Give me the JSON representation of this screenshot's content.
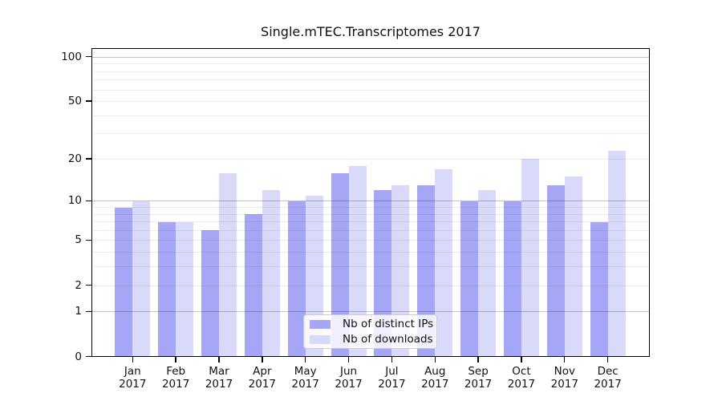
{
  "figure": {
    "background": "#ffffff"
  },
  "chart_data": {
    "type": "bar",
    "title": "Single.mTEC.Transcriptomes 2017",
    "categories": [
      "Jan 2017",
      "Feb 2017",
      "Mar 2017",
      "Apr 2017",
      "May 2017",
      "Jun 2017",
      "Jul 2017",
      "Aug 2017",
      "Sep 2017",
      "Oct 2017",
      "Nov 2017",
      "Dec 2017"
    ],
    "series": [
      {
        "name": "Nb of distinct IPs",
        "color": "#a6a6f7",
        "values": [
          9,
          7,
          6,
          8,
          10,
          16,
          12,
          13,
          10,
          10,
          13,
          7
        ]
      },
      {
        "name": "Nb of downloads",
        "color": "#d9d9fa",
        "values": [
          10,
          7,
          16,
          12,
          11,
          18,
          13,
          17,
          12,
          20,
          15,
          23
        ]
      }
    ],
    "xlabel": "",
    "ylabel": "",
    "yscale": "log10(1+x)",
    "ylim": [
      0,
      115
    ],
    "yticks": [
      0,
      1,
      2,
      5,
      10,
      20,
      50,
      100
    ],
    "grid": {
      "enabled": true,
      "major_values": [
        1,
        10,
        100
      ],
      "minor_values": [
        2,
        3,
        4,
        5,
        6,
        7,
        8,
        9,
        20,
        30,
        40,
        50,
        60,
        70,
        80,
        90
      ]
    },
    "legend": {
      "position": "inside-bottom-center",
      "entries": [
        "Nb of distinct IPs",
        "Nb of downloads"
      ]
    },
    "colors": {
      "major_grid": "rgba(0,0,0,0.24)",
      "minor_grid": "rgba(0,0,0,0.075)",
      "spine": "#000000"
    }
  }
}
